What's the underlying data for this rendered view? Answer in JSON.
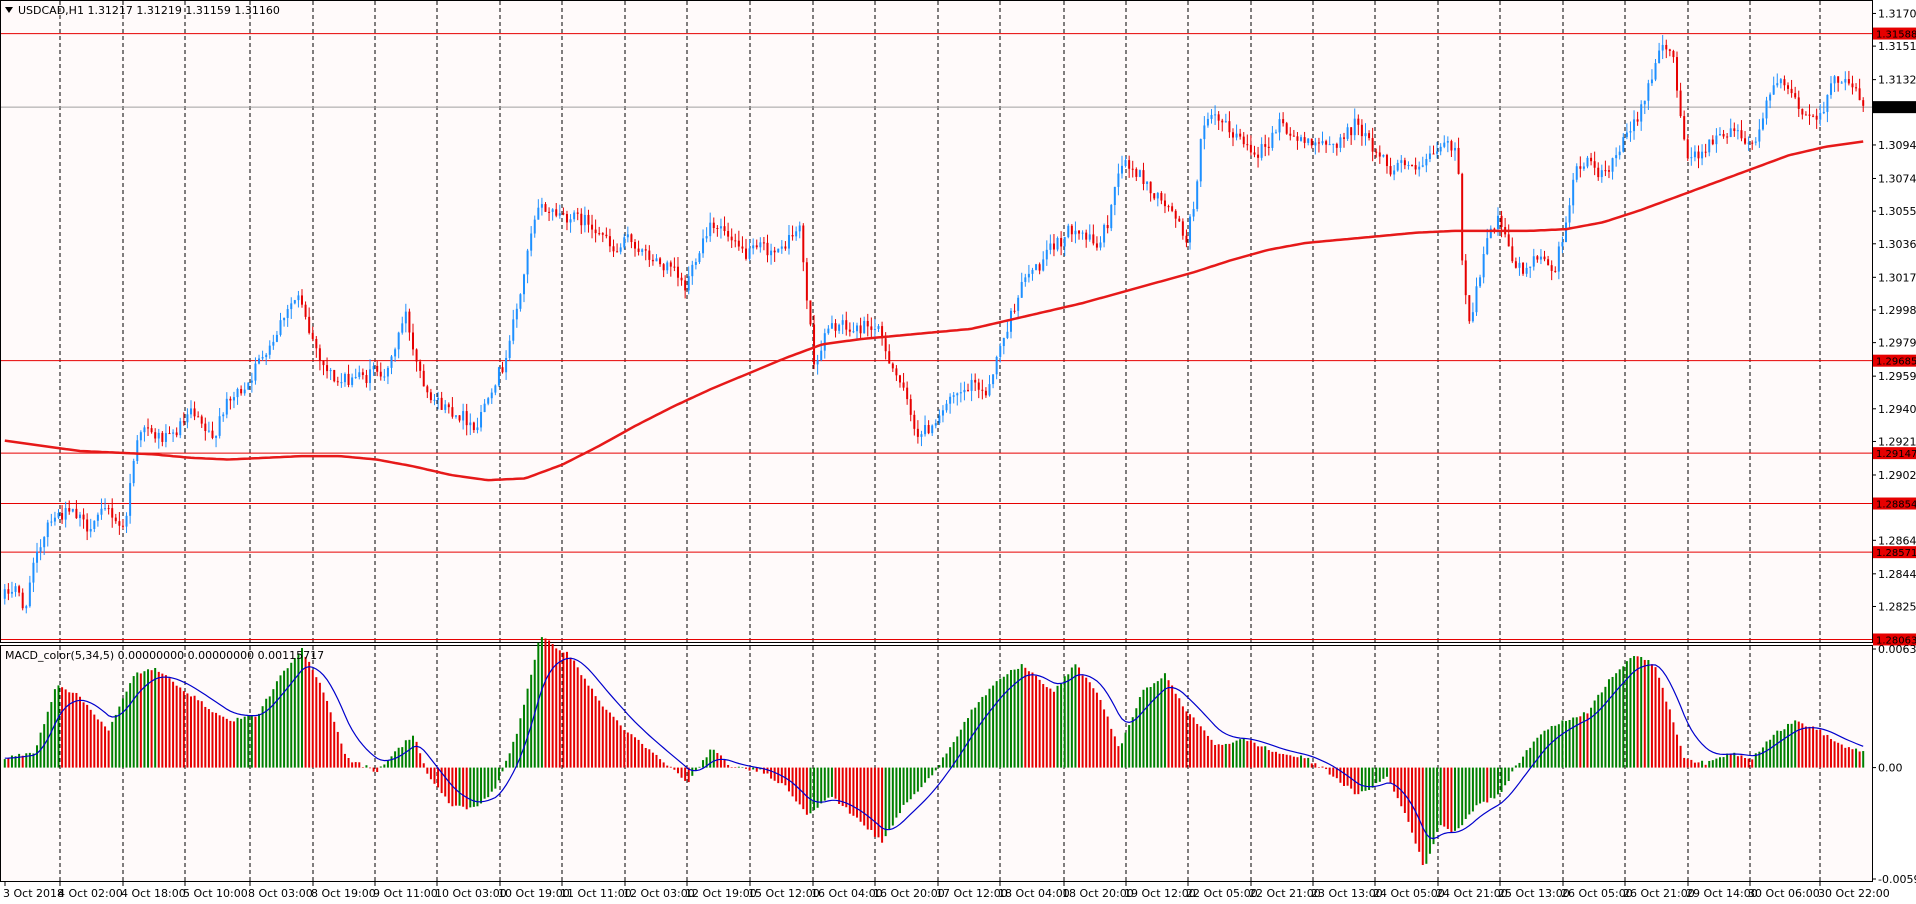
{
  "header": {
    "symbol_line": "USDCAD,H1  1.31217 1.31219 1.31159 1.31160",
    "indicator_line": "MACD_color(5,34,5) 0.00000000 0.00000000 0.00115717"
  },
  "colors": {
    "background": "#ffffff",
    "chart_background": "#fffafa",
    "bull": "#1e90ff",
    "bear": "#e60000",
    "ma": "#e61919",
    "hline": "#e60000",
    "grid": "#000000",
    "macd_up": "#008000",
    "macd_down": "#e60000",
    "macd_signal": "#0000cc",
    "label_bg_red": "#e60000",
    "label_bg_dark": "#000000"
  },
  "price_axis": {
    "ticks": [
      "1.31705",
      "1.31515",
      "1.31320",
      "1.30940",
      "1.30745",
      "1.30555",
      "1.30365",
      "1.30170",
      "1.29980",
      "1.29790",
      "1.29595",
      "1.29405",
      "1.29215",
      "1.29020",
      "1.28640",
      "1.28445",
      "1.28255"
    ],
    "current_price": "1.31160",
    "hlines": [
      "1.31588",
      "1.29685",
      "1.29147",
      "1.28854",
      "1.28571",
      "1.28063"
    ]
  },
  "macd_axis": {
    "ticks": [
      "0.006331",
      "0.00",
      "-0.005948"
    ]
  },
  "time_axis": {
    "labels": [
      "3 Oct 2018",
      "4 Oct 02:00",
      "4 Oct 18:00",
      "5 Oct 10:00",
      "8 Oct 03:00",
      "8 Oct 19:00",
      "9 Oct 11:00",
      "10 Oct 03:00",
      "10 Oct 19:00",
      "11 Oct 11:00",
      "12 Oct 03:00",
      "12 Oct 19:00",
      "15 Oct 12:00",
      "16 Oct 04:00",
      "16 Oct 20:00",
      "17 Oct 12:00",
      "18 Oct 04:00",
      "18 Oct 20:00",
      "19 Oct 12:00",
      "22 Oct 05:00",
      "22 Oct 21:00",
      "23 Oct 13:00",
      "24 Oct 05:00",
      "24 Oct 21:00",
      "25 Oct 13:00",
      "26 Oct 05:00",
      "26 Oct 21:00",
      "29 Oct 14:00",
      "30 Oct 06:00",
      "30 Oct 22:00"
    ]
  },
  "chart_data": {
    "type": "candlestick",
    "symbol": "USDCAD",
    "timeframe": "H1",
    "price_range": [
      1.2806,
      1.3176
    ],
    "macd_range": [
      -0.005948,
      0.006331
    ],
    "price_keypoints": [
      [
        0,
        1.2832
      ],
      [
        3,
        1.2838
      ],
      [
        5,
        1.2822
      ],
      [
        8,
        1.285
      ],
      [
        12,
        1.2878
      ],
      [
        18,
        1.288
      ],
      [
        22,
        1.2872
      ],
      [
        28,
        1.2882
      ],
      [
        32,
        1.287
      ],
      [
        36,
        1.293
      ],
      [
        40,
        1.2925
      ],
      [
        44,
        1.2922
      ],
      [
        48,
        1.2932
      ],
      [
        50,
        1.2938
      ],
      [
        53,
        1.293
      ],
      [
        56,
        1.2922
      ],
      [
        58,
        1.2938
      ],
      [
        62,
        1.2948
      ],
      [
        66,
        1.2958
      ],
      [
        70,
        1.2975
      ],
      [
        72,
        1.298
      ],
      [
        76,
        1.3
      ],
      [
        79,
        1.3005
      ],
      [
        82,
        1.2985
      ],
      [
        86,
        1.2965
      ],
      [
        90,
        1.2955
      ],
      [
        94,
        1.296
      ],
      [
        97,
        1.2958
      ],
      [
        100,
        1.2965
      ],
      [
        103,
        1.296
      ],
      [
        106,
        1.2985
      ],
      [
        108,
        1.2995
      ],
      [
        110,
        1.2975
      ],
      [
        113,
        1.2955
      ],
      [
        116,
        1.2945
      ],
      [
        120,
        1.294
      ],
      [
        124,
        1.2935
      ],
      [
        127,
        1.293
      ],
      [
        130,
        1.295
      ],
      [
        134,
        1.2965
      ],
      [
        138,
        1.3
      ],
      [
        142,
        1.3045
      ],
      [
        144,
        1.3058
      ],
      [
        148,
        1.3055
      ],
      [
        152,
        1.3052
      ],
      [
        156,
        1.305
      ],
      [
        160,
        1.3045
      ],
      [
        164,
        1.303
      ],
      [
        168,
        1.304
      ],
      [
        172,
        1.303
      ],
      [
        176,
        1.3025
      ],
      [
        180,
        1.302
      ],
      [
        183,
        1.301
      ],
      [
        186,
        1.303
      ],
      [
        190,
        1.305
      ],
      [
        193,
        1.3045
      ],
      [
        196,
        1.3035
      ],
      [
        200,
        1.303
      ],
      [
        204,
        1.3035
      ],
      [
        208,
        1.303
      ],
      [
        211,
        1.304
      ],
      [
        214,
        1.3045
      ],
      [
        216,
        1.3
      ],
      [
        218,
        1.2965
      ],
      [
        221,
        1.2985
      ],
      [
        224,
        1.299
      ],
      [
        228,
        1.2985
      ],
      [
        232,
        1.299
      ],
      [
        235,
        1.2985
      ],
      [
        238,
        1.297
      ],
      [
        241,
        1.2955
      ],
      [
        244,
        1.2935
      ],
      [
        246,
        1.2925
      ],
      [
        249,
        1.293
      ],
      [
        252,
        1.294
      ],
      [
        255,
        1.2945
      ],
      [
        258,
        1.295
      ],
      [
        261,
        1.2955
      ],
      [
        264,
        1.295
      ],
      [
        267,
        1.297
      ],
      [
        270,
        1.299
      ],
      [
        273,
        1.301
      ],
      [
        276,
        1.302
      ],
      [
        279,
        1.3025
      ],
      [
        282,
        1.3035
      ],
      [
        285,
        1.304
      ],
      [
        288,
        1.3048
      ],
      [
        291,
        1.304
      ],
      [
        294,
        1.3035
      ],
      [
        297,
        1.305
      ],
      [
        300,
        1.3085
      ],
      [
        303,
        1.308
      ],
      [
        306,
        1.3075
      ],
      [
        309,
        1.3065
      ],
      [
        312,
        1.306
      ],
      [
        315,
        1.305
      ],
      [
        318,
        1.304
      ],
      [
        320,
        1.306
      ],
      [
        322,
        1.31
      ],
      [
        325,
        1.311
      ],
      [
        328,
        1.3105
      ],
      [
        331,
        1.31
      ],
      [
        334,
        1.3095
      ],
      [
        337,
        1.309
      ],
      [
        340,
        1.3095
      ],
      [
        343,
        1.3108
      ],
      [
        346,
        1.31
      ],
      [
        349,
        1.3095
      ],
      [
        352,
        1.3098
      ],
      [
        355,
        1.3092
      ],
      [
        358,
        1.3095
      ],
      [
        361,
        1.31
      ],
      [
        364,
        1.3108
      ],
      [
        367,
        1.3095
      ],
      [
        370,
        1.3088
      ],
      [
        373,
        1.308
      ],
      [
        376,
        1.3085
      ],
      [
        379,
        1.3078
      ],
      [
        382,
        1.3082
      ],
      [
        385,
        1.309
      ],
      [
        388,
        1.3095
      ],
      [
        391,
        1.3088
      ],
      [
        392,
        1.303
      ],
      [
        394,
        1.299
      ],
      [
        396,
        1.301
      ],
      [
        399,
        1.304
      ],
      [
        402,
        1.305
      ],
      [
        405,
        1.303
      ],
      [
        408,
        1.302
      ],
      [
        411,
        1.3025
      ],
      [
        414,
        1.303
      ],
      [
        417,
        1.302
      ],
      [
        420,
        1.305
      ],
      [
        422,
        1.3075
      ],
      [
        425,
        1.3085
      ],
      [
        428,
        1.308
      ],
      [
        431,
        1.3075
      ],
      [
        434,
        1.309
      ],
      [
        437,
        1.31
      ],
      [
        440,
        1.3115
      ],
      [
        443,
        1.3135
      ],
      [
        446,
        1.315
      ],
      [
        449,
        1.3145
      ],
      [
        451,
        1.311
      ],
      [
        453,
        1.3085
      ],
      [
        456,
        1.309
      ],
      [
        459,
        1.3095
      ],
      [
        462,
        1.31
      ],
      [
        465,
        1.3105
      ],
      [
        468,
        1.3098
      ],
      [
        471,
        1.3095
      ],
      [
        474,
        1.312
      ],
      [
        477,
        1.313
      ],
      [
        480,
        1.3125
      ],
      [
        483,
        1.3115
      ],
      [
        486,
        1.311
      ],
      [
        489,
        1.3115
      ],
      [
        492,
        1.313
      ],
      [
        495,
        1.3135
      ],
      [
        498,
        1.3125
      ],
      [
        500,
        1.3116
      ]
    ],
    "ma_keypoints": [
      [
        0,
        1.2922
      ],
      [
        10,
        1.2919
      ],
      [
        20,
        1.2916
      ],
      [
        40,
        1.2914
      ],
      [
        50,
        1.2912
      ],
      [
        60,
        1.2911
      ],
      [
        70,
        1.2912
      ],
      [
        80,
        1.2913
      ],
      [
        90,
        1.2913
      ],
      [
        100,
        1.2911
      ],
      [
        110,
        1.2907
      ],
      [
        120,
        1.2902
      ],
      [
        130,
        1.2899
      ],
      [
        140,
        1.29
      ],
      [
        150,
        1.2908
      ],
      [
        160,
        1.2919
      ],
      [
        170,
        1.2931
      ],
      [
        180,
        1.2942
      ],
      [
        190,
        1.2952
      ],
      [
        200,
        1.2961
      ],
      [
        210,
        1.297
      ],
      [
        220,
        1.2978
      ],
      [
        230,
        1.2981
      ],
      [
        240,
        1.2983
      ],
      [
        250,
        1.2985
      ],
      [
        260,
        1.2987
      ],
      [
        270,
        1.2992
      ],
      [
        280,
        1.2997
      ],
      [
        290,
        1.3002
      ],
      [
        300,
        1.3008
      ],
      [
        310,
        1.3014
      ],
      [
        320,
        1.302
      ],
      [
        330,
        1.3027
      ],
      [
        340,
        1.3033
      ],
      [
        350,
        1.3037
      ],
      [
        360,
        1.3039
      ],
      [
        370,
        1.3041
      ],
      [
        380,
        1.3043
      ],
      [
        390,
        1.3044
      ],
      [
        400,
        1.3044
      ],
      [
        410,
        1.3044
      ],
      [
        420,
        1.3045
      ],
      [
        430,
        1.3049
      ],
      [
        440,
        1.3056
      ],
      [
        450,
        1.3064
      ],
      [
        460,
        1.3072
      ],
      [
        470,
        1.308
      ],
      [
        480,
        1.3088
      ],
      [
        490,
        1.3093
      ],
      [
        500,
        1.3096
      ]
    ],
    "macd_keypoints": [
      [
        0,
        0.0005
      ],
      [
        8,
        0.0008
      ],
      [
        14,
        0.0045
      ],
      [
        20,
        0.0038
      ],
      [
        28,
        0.002
      ],
      [
        35,
        0.005
      ],
      [
        40,
        0.0053
      ],
      [
        46,
        0.0045
      ],
      [
        54,
        0.0033
      ],
      [
        60,
        0.0025
      ],
      [
        68,
        0.0028
      ],
      [
        74,
        0.0048
      ],
      [
        80,
        0.0063
      ],
      [
        86,
        0.004
      ],
      [
        92,
        0.0005
      ],
      [
        100,
        -0.0002
      ],
      [
        106,
        0.001
      ],
      [
        110,
        0.0018
      ],
      [
        114,
        -0.0005
      ],
      [
        120,
        -0.002
      ],
      [
        126,
        -0.0022
      ],
      [
        132,
        -0.0012
      ],
      [
        138,
        0.002
      ],
      [
        144,
        0.007
      ],
      [
        152,
        0.006
      ],
      [
        160,
        0.0035
      ],
      [
        168,
        0.0018
      ],
      [
        176,
        0.0005
      ],
      [
        184,
        -0.0008
      ],
      [
        190,
        0.001
      ],
      [
        196,
        0.0
      ],
      [
        204,
        -0.0002
      ],
      [
        210,
        -0.001
      ],
      [
        216,
        -0.0025
      ],
      [
        222,
        -0.0015
      ],
      [
        230,
        -0.0028
      ],
      [
        236,
        -0.004
      ],
      [
        242,
        -0.002
      ],
      [
        248,
        -0.0008
      ],
      [
        254,
        0.001
      ],
      [
        260,
        0.003
      ],
      [
        268,
        0.0048
      ],
      [
        274,
        0.0055
      ],
      [
        282,
        0.004
      ],
      [
        288,
        0.0055
      ],
      [
        294,
        0.004
      ],
      [
        300,
        0.001
      ],
      [
        306,
        0.004
      ],
      [
        312,
        0.005
      ],
      [
        318,
        0.003
      ],
      [
        326,
        0.0012
      ],
      [
        334,
        0.0015
      ],
      [
        342,
        0.0008
      ],
      [
        350,
        0.0005
      ],
      [
        356,
        -0.0002
      ],
      [
        364,
        -0.0015
      ],
      [
        372,
        -0.0005
      ],
      [
        378,
        -0.003
      ],
      [
        382,
        -0.0055
      ],
      [
        386,
        -0.003
      ],
      [
        390,
        -0.0035
      ],
      [
        396,
        -0.002
      ],
      [
        402,
        -0.0015
      ],
      [
        408,
        0.0005
      ],
      [
        414,
        0.002
      ],
      [
        420,
        0.0025
      ],
      [
        426,
        0.003
      ],
      [
        432,
        0.0048
      ],
      [
        438,
        0.006
      ],
      [
        444,
        0.0055
      ],
      [
        448,
        0.003
      ],
      [
        452,
        0.0005
      ],
      [
        458,
        0.0002
      ],
      [
        464,
        0.0008
      ],
      [
        470,
        0.0005
      ],
      [
        476,
        0.0018
      ],
      [
        482,
        0.0025
      ],
      [
        488,
        0.002
      ],
      [
        494,
        0.0012
      ],
      [
        500,
        0.0008
      ]
    ],
    "candle_count": 520
  }
}
